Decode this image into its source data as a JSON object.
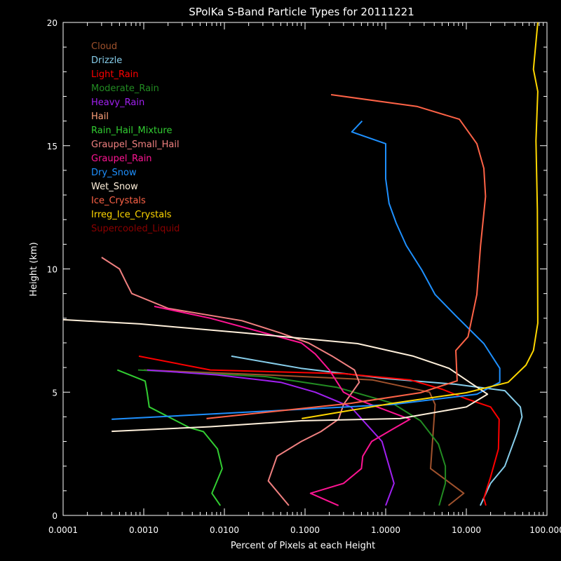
{
  "chart_data": {
    "type": "line",
    "title": "SPolKa S-Band Particle Types for 20111221",
    "xlabel": "Percent of Pixels at each Height",
    "ylabel": "Height (km)",
    "x_scale": "log",
    "xlim": [
      0.0001,
      100
    ],
    "ylim": [
      0,
      20
    ],
    "x_tick_labels": [
      "0.0001",
      "0.0010",
      "0.0100",
      "0.1000",
      "1.0000",
      "10.000",
      "100.000"
    ],
    "y_tick_labels": [
      "0",
      "5",
      "10",
      "15",
      "20"
    ],
    "grid": false,
    "legend_placement": "top-left",
    "background": "#000000",
    "series": [
      {
        "name": "Cloud",
        "color": "#a0522d",
        "points": [
          [
            6.0,
            0.4
          ],
          [
            9.3,
            0.9
          ],
          [
            3.6,
            1.9
          ],
          [
            4.1,
            4.5
          ],
          [
            3.5,
            5.0
          ],
          [
            2.8,
            5.07
          ],
          [
            0.68,
            5.5
          ],
          [
            0.033,
            5.7
          ],
          [
            0.001,
            5.9
          ]
        ]
      },
      {
        "name": "Drizzle",
        "color": "#87ceeb",
        "points": [
          [
            14.9,
            0.4
          ],
          [
            20,
            1.3
          ],
          [
            30,
            2.0
          ],
          [
            42,
            3.3
          ],
          [
            49,
            4.0
          ],
          [
            46.7,
            4.4
          ],
          [
            30,
            5.06
          ],
          [
            7.4,
            5.32
          ],
          [
            1.0,
            5.55
          ],
          [
            0.089,
            5.97
          ],
          [
            0.0122,
            6.46
          ]
        ]
      },
      {
        "name": "Light_Rain",
        "color": "#ff0000",
        "points": [
          [
            17.5,
            0.4
          ],
          [
            16.5,
            0.7
          ],
          [
            20,
            1.56
          ],
          [
            25,
            2.7
          ],
          [
            25.5,
            3.9
          ],
          [
            20,
            4.4
          ],
          [
            9.6,
            4.75
          ],
          [
            5.0,
            5.12
          ],
          [
            2.0,
            5.5
          ],
          [
            0.3,
            5.75
          ],
          [
            0.0067,
            5.9
          ],
          [
            0.00087,
            6.46
          ]
        ]
      },
      {
        "name": "Moderate_Rain",
        "color": "#228b22",
        "points": [
          [
            4.6,
            0.4
          ],
          [
            5.5,
            1.3
          ],
          [
            5.5,
            2.0
          ],
          [
            4.5,
            2.9
          ],
          [
            2.7,
            3.84
          ],
          [
            1.22,
            4.55
          ],
          [
            0.246,
            5.2
          ],
          [
            0.033,
            5.63
          ],
          [
            0.00085,
            5.9
          ]
        ]
      },
      {
        "name": "Heavy_Rain",
        "color": "#a020f0",
        "points": [
          [
            1.0,
            0.4
          ],
          [
            1.27,
            1.3
          ],
          [
            0.9,
            3.0
          ],
          [
            0.37,
            4.4
          ],
          [
            0.134,
            5.0
          ],
          [
            0.05,
            5.4
          ],
          [
            0.0081,
            5.7
          ],
          [
            0.0011,
            5.9
          ]
        ]
      },
      {
        "name": "Hail",
        "color": "#ffa07a",
        "points": []
      },
      {
        "name": "Rain_Hail_Mixture",
        "color": "#32cd32",
        "points": [
          [
            0.0089,
            0.4
          ],
          [
            0.007,
            0.9
          ],
          [
            0.0094,
            1.9
          ],
          [
            0.0082,
            2.7
          ],
          [
            0.0055,
            3.4
          ],
          [
            0.0037,
            3.56
          ],
          [
            0.00117,
            4.4
          ],
          [
            0.0011,
            5.0
          ],
          [
            0.00104,
            5.45
          ],
          [
            0.00047,
            5.9
          ]
        ]
      },
      {
        "name": "Graupel_Small_Hail",
        "color": "#f08080",
        "points": [
          [
            0.063,
            0.4
          ],
          [
            0.035,
            1.4
          ],
          [
            0.045,
            2.4
          ],
          [
            0.09,
            3.0
          ],
          [
            0.157,
            3.4
          ],
          [
            0.26,
            3.9
          ],
          [
            0.3,
            4.5
          ],
          [
            0.47,
            5.4
          ],
          [
            0.41,
            5.9
          ],
          [
            0.22,
            6.45
          ],
          [
            0.11,
            7.0
          ],
          [
            0.05,
            7.4
          ],
          [
            0.0165,
            7.9
          ],
          [
            0.002,
            8.4
          ],
          [
            0.00071,
            9.0
          ],
          [
            0.0006,
            9.47
          ],
          [
            0.0005,
            10.0
          ],
          [
            0.0003,
            10.47
          ]
        ]
      },
      {
        "name": "Graupel_Rain",
        "color": "#ff1493",
        "points": [
          [
            0.26,
            0.4
          ],
          [
            0.117,
            0.9
          ],
          [
            0.3,
            1.3
          ],
          [
            0.5,
            1.9
          ],
          [
            0.52,
            2.4
          ],
          [
            0.67,
            3.0
          ],
          [
            1.22,
            3.5
          ],
          [
            2.0,
            3.9
          ],
          [
            0.45,
            4.7
          ],
          [
            0.3,
            5.0
          ],
          [
            0.2,
            5.9
          ],
          [
            0.134,
            6.55
          ],
          [
            0.09,
            7.0
          ],
          [
            0.0067,
            8.0
          ],
          [
            0.00135,
            8.48
          ]
        ]
      },
      {
        "name": "Dry_Snow",
        "color": "#1e90ff",
        "points": [
          [
            0.0004,
            3.9
          ],
          [
            1.22,
            4.5
          ],
          [
            13.5,
            4.92
          ],
          [
            26,
            5.4
          ],
          [
            26,
            5.97
          ],
          [
            16.5,
            6.97
          ],
          [
            7.4,
            8.1
          ],
          [
            4.1,
            8.96
          ],
          [
            2.8,
            9.96
          ],
          [
            1.8,
            10.95
          ],
          [
            1.35,
            11.86
          ],
          [
            1.1,
            12.66
          ],
          [
            1.0,
            13.66
          ],
          [
            1.0,
            15.08
          ],
          [
            0.38,
            15.56
          ],
          [
            0.51,
            16.0
          ]
        ]
      },
      {
        "name": "Wet_Snow",
        "color": "#fff0db",
        "points": [
          [
            0.0004,
            3.41
          ],
          [
            0.0067,
            3.6
          ],
          [
            0.09,
            3.84
          ],
          [
            1.5,
            3.93
          ],
          [
            10,
            4.4
          ],
          [
            18.3,
            4.92
          ],
          [
            11,
            5.4
          ],
          [
            6.1,
            5.97
          ],
          [
            2.2,
            6.46
          ],
          [
            0.45,
            6.97
          ],
          [
            0.018,
            7.4
          ],
          [
            0.0009,
            7.77
          ],
          [
            0.0001,
            7.94
          ]
        ]
      },
      {
        "name": "Ice_Crystals",
        "color": "#ff6347",
        "points": [
          [
            0.006,
            3.93
          ],
          [
            0.37,
            4.55
          ],
          [
            2.7,
            4.98
          ],
          [
            7.7,
            5.46
          ],
          [
            7.4,
            6.69
          ],
          [
            10.5,
            7.25
          ],
          [
            13.5,
            8.96
          ],
          [
            15,
            10.95
          ],
          [
            17.3,
            12.94
          ],
          [
            16.5,
            14.08
          ],
          [
            13.5,
            15.08
          ],
          [
            8.2,
            16.07
          ],
          [
            2.47,
            16.59
          ],
          [
            0.21,
            17.07
          ]
        ]
      },
      {
        "name": "Irreg_Ice_Crystals",
        "color": "#ffd700",
        "points": [
          [
            0.091,
            3.93
          ],
          [
            1.22,
            4.55
          ],
          [
            10,
            4.98
          ],
          [
            33,
            5.4
          ],
          [
            55,
            6.1
          ],
          [
            68,
            6.69
          ],
          [
            77,
            7.8
          ],
          [
            76,
            12.4
          ],
          [
            73,
            15.2
          ],
          [
            77,
            17.2
          ],
          [
            68,
            18.1
          ],
          [
            77,
            20
          ]
        ]
      },
      {
        "name": "Supercooled_Liquid",
        "color": "#8b0000",
        "points": []
      }
    ]
  }
}
